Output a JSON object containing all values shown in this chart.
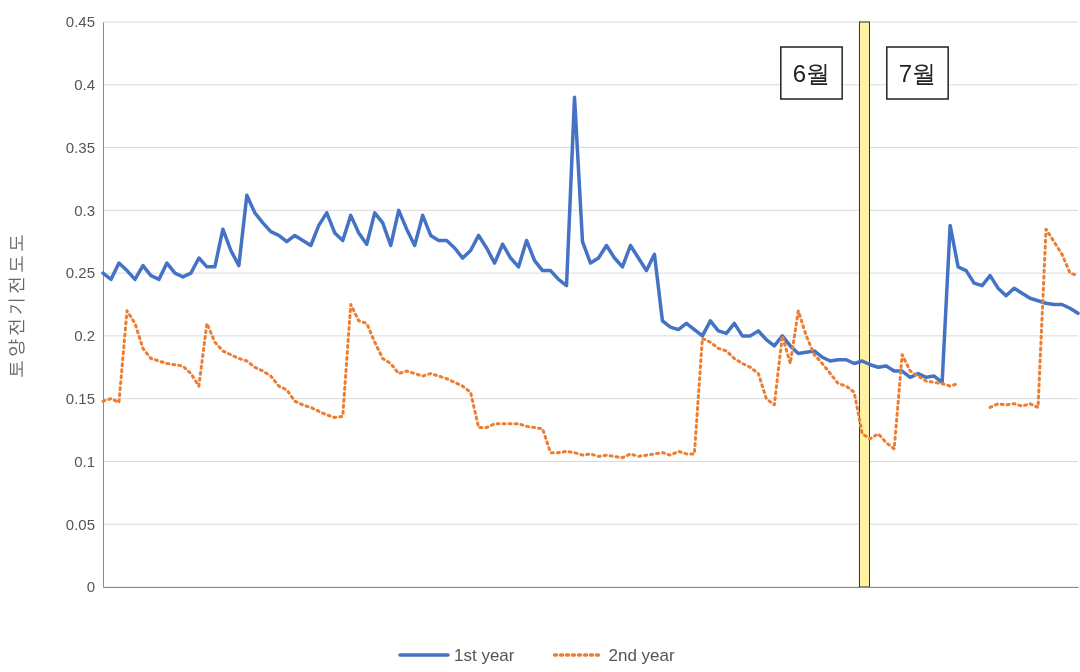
{
  "chart_data": {
    "type": "line",
    "ylabel": "토양전기전도도",
    "categories": [
      null,
      null,
      null,
      null,
      null,
      null,
      null,
      null,
      null,
      null,
      null,
      null,
      null,
      null,
      null,
      null,
      null,
      null,
      null,
      null,
      null,
      null,
      null,
      null,
      null,
      null,
      null,
      null,
      null,
      null,
      null,
      null,
      null,
      null,
      null,
      null,
      null,
      null,
      null,
      null,
      null,
      null,
      null,
      null,
      null,
      null,
      null,
      null,
      null,
      null,
      null,
      null,
      null,
      null,
      null,
      null,
      null,
      null,
      null,
      null,
      null,
      null,
      null,
      null,
      null,
      null,
      null,
      null,
      null,
      null,
      null,
      null,
      null,
      null,
      null,
      null,
      null,
      null,
      null,
      null,
      null,
      null,
      null,
      null,
      null,
      null,
      null,
      null,
      null,
      null,
      null,
      null,
      null,
      null,
      null,
      null,
      null,
      null,
      null,
      null,
      null,
      null,
      null,
      null,
      null,
      null,
      null,
      null,
      null,
      null,
      null,
      null,
      null,
      null,
      null,
      null,
      null,
      null,
      null,
      null,
      null,
      null,
      null
    ],
    "ylim": [
      0,
      0.45
    ],
    "yticks": [
      0,
      0.05,
      0.1,
      0.15,
      0.2,
      0.25,
      0.3,
      0.35,
      0.4,
      0.45
    ],
    "grid": "y",
    "legend": "bottom",
    "annotations": [
      "6월",
      "7월"
    ],
    "series": [
      {
        "name": "1st year",
        "color": "#4472c4",
        "line_style": "solid",
        "values": [
          0.25,
          0.245,
          0.258,
          0.252,
          0.245,
          0.256,
          0.248,
          0.245,
          0.258,
          0.25,
          0.247,
          0.25,
          0.262,
          0.255,
          0.255,
          0.285,
          0.268,
          0.256,
          0.312,
          0.298,
          0.29,
          0.283,
          0.28,
          0.275,
          0.28,
          0.276,
          0.272,
          0.288,
          0.298,
          0.282,
          0.276,
          0.296,
          0.282,
          0.273,
          0.298,
          0.29,
          0.272,
          0.3,
          0.285,
          0.272,
          0.296,
          0.28,
          0.276,
          0.276,
          0.27,
          0.262,
          0.268,
          0.28,
          0.27,
          0.258,
          0.273,
          0.262,
          0.255,
          0.276,
          0.26,
          0.252,
          0.252,
          0.245,
          0.24,
          0.39,
          0.275,
          0.258,
          0.262,
          0.272,
          0.262,
          0.255,
          0.272,
          0.262,
          0.252,
          0.265,
          0.212,
          0.207,
          0.205,
          0.21,
          0.205,
          0.2,
          0.212,
          0.204,
          0.202,
          0.21,
          0.2,
          0.2,
          0.204,
          0.197,
          0.192,
          0.2,
          0.192,
          0.186,
          0.187,
          0.188,
          0.183,
          0.18,
          0.181,
          0.181,
          0.178,
          0.18,
          0.177,
          0.175,
          0.176,
          0.172,
          0.172,
          0.167,
          0.17,
          0.167,
          0.168,
          0.163,
          0.288,
          0.255,
          0.252,
          0.242,
          0.24,
          0.248,
          0.238,
          0.232,
          0.238,
          0.234,
          0.23,
          0.228,
          0.226,
          0.225,
          0.225,
          0.222,
          0.218
        ]
      },
      {
        "name": "2nd year",
        "color": "#ed7d31",
        "line_style": "dotted",
        "values": [
          0.148,
          0.15,
          0.147,
          0.22,
          0.21,
          0.19,
          0.182,
          0.18,
          0.178,
          0.177,
          0.176,
          0.17,
          0.16,
          0.21,
          0.195,
          0.188,
          0.185,
          0.182,
          0.18,
          0.175,
          0.172,
          0.168,
          0.16,
          0.157,
          0.148,
          0.145,
          0.143,
          0.14,
          0.137,
          0.135,
          0.136,
          0.225,
          0.212,
          0.21,
          0.195,
          0.182,
          0.178,
          0.17,
          0.172,
          0.17,
          0.168,
          0.17,
          0.168,
          0.166,
          0.163,
          0.16,
          0.155,
          0.127,
          0.127,
          0.13,
          0.13,
          0.13,
          0.13,
          0.128,
          0.127,
          0.126,
          0.107,
          0.107,
          0.108,
          0.107,
          0.105,
          0.106,
          0.104,
          0.105,
          0.104,
          0.103,
          0.106,
          0.104,
          0.105,
          0.106,
          0.107,
          0.105,
          0.108,
          0.106,
          0.106,
          0.198,
          0.195,
          0.19,
          0.188,
          0.182,
          0.178,
          0.175,
          0.17,
          0.15,
          0.145,
          0.2,
          0.178,
          0.22,
          0.2,
          0.185,
          0.178,
          0.17,
          0.162,
          0.16,
          0.155,
          0.122,
          0.118,
          0.122,
          0.115,
          0.11,
          0.185,
          0.172,
          0.168,
          0.164,
          0.163,
          0.162,
          0.16,
          0.162,
          null,
          null,
          null,
          0.143,
          0.146,
          0.145,
          0.146,
          0.144,
          0.146,
          0.143,
          0.285,
          0.275,
          0.265,
          0.25,
          0.248
        ]
      }
    ]
  }
}
